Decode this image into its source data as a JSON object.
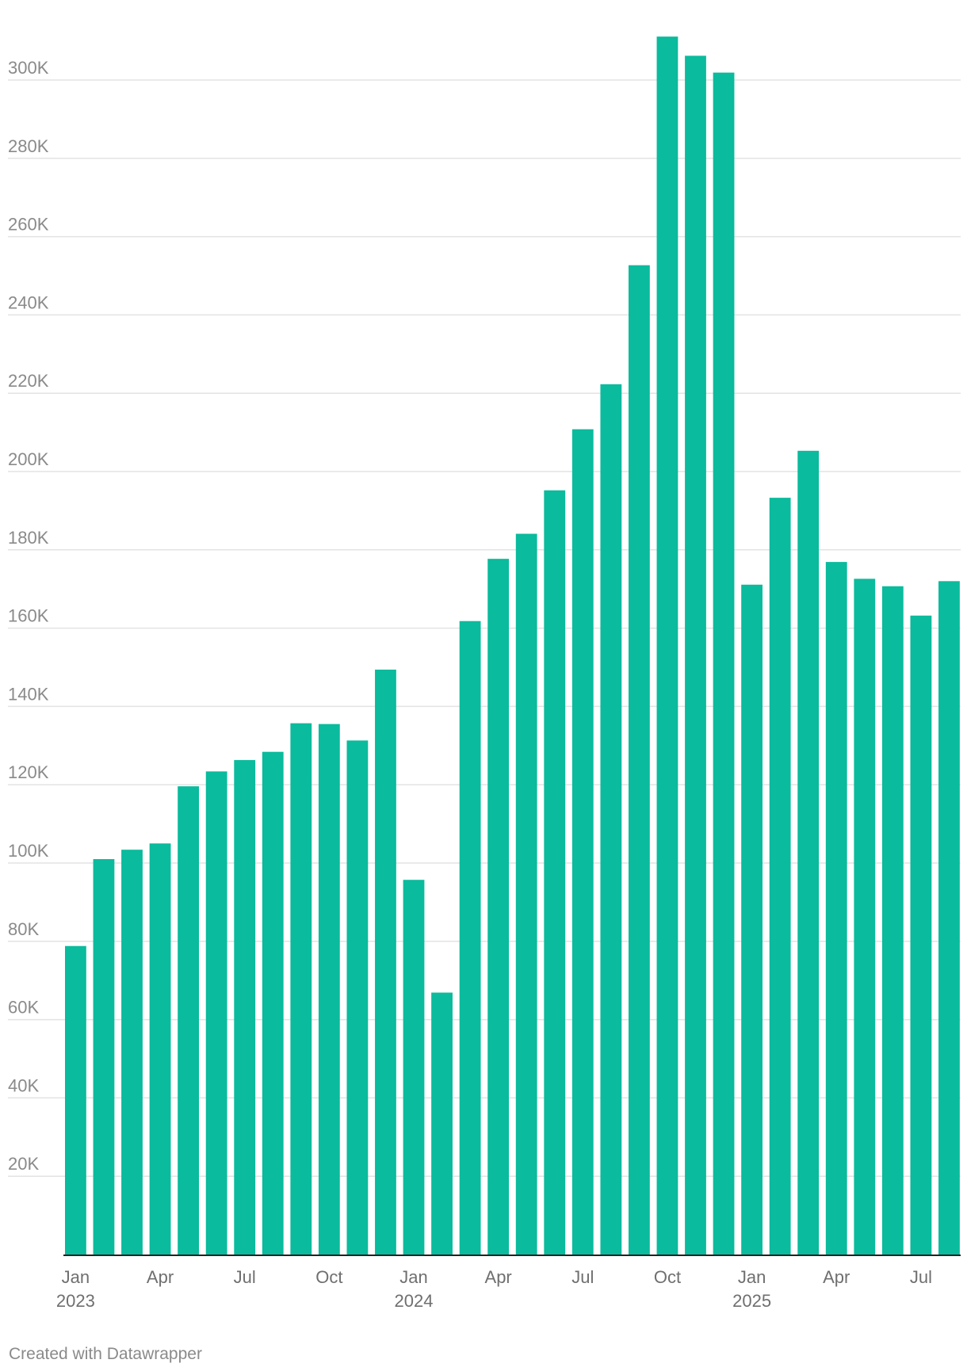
{
  "chart_data": {
    "type": "bar",
    "title": "",
    "xlabel": "",
    "ylabel": "",
    "ylim": [
      0,
      315000
    ],
    "grid": true,
    "bar_color": "#0abb9d",
    "yticks": [
      {
        "value": 20000,
        "label": "20K"
      },
      {
        "value": 40000,
        "label": "40K"
      },
      {
        "value": 60000,
        "label": "60K"
      },
      {
        "value": 80000,
        "label": "80K"
      },
      {
        "value": 100000,
        "label": "100K"
      },
      {
        "value": 120000,
        "label": "120K"
      },
      {
        "value": 140000,
        "label": "140K"
      },
      {
        "value": 160000,
        "label": "160K"
      },
      {
        "value": 180000,
        "label": "180K"
      },
      {
        "value": 200000,
        "label": "200K"
      },
      {
        "value": 220000,
        "label": "220K"
      },
      {
        "value": 240000,
        "label": "240K"
      },
      {
        "value": 260000,
        "label": "260K"
      },
      {
        "value": 280000,
        "label": "280K"
      },
      {
        "value": 300000,
        "label": "300K"
      }
    ],
    "categories": [
      "2023-01",
      "2023-02",
      "2023-03",
      "2023-04",
      "2023-05",
      "2023-06",
      "2023-07",
      "2023-08",
      "2023-09",
      "2023-10",
      "2023-11",
      "2023-12",
      "2024-01",
      "2024-02",
      "2024-03",
      "2024-04",
      "2024-05",
      "2024-06",
      "2024-07",
      "2024-08",
      "2024-09",
      "2024-10",
      "2024-11",
      "2024-12",
      "2025-01",
      "2025-02",
      "2025-03",
      "2025-04",
      "2025-05",
      "2025-06",
      "2025-07",
      "2025-08"
    ],
    "values": [
      78800,
      101000,
      103400,
      105000,
      119600,
      123400,
      126300,
      128400,
      135700,
      135500,
      131300,
      149400,
      95700,
      66900,
      161800,
      177700,
      184100,
      195200,
      210800,
      222300,
      252700,
      311100,
      306200,
      301900,
      171100,
      193300,
      205300,
      176900,
      172600,
      170700,
      163200,
      172000
    ],
    "xticks": [
      {
        "index": 0,
        "month": "Jan",
        "year": "2023"
      },
      {
        "index": 3,
        "month": "Apr",
        "year": ""
      },
      {
        "index": 6,
        "month": "Jul",
        "year": ""
      },
      {
        "index": 9,
        "month": "Oct",
        "year": ""
      },
      {
        "index": 12,
        "month": "Jan",
        "year": "2024"
      },
      {
        "index": 15,
        "month": "Apr",
        "year": ""
      },
      {
        "index": 18,
        "month": "Jul",
        "year": ""
      },
      {
        "index": 21,
        "month": "Oct",
        "year": ""
      },
      {
        "index": 24,
        "month": "Jan",
        "year": "2025"
      },
      {
        "index": 27,
        "month": "Apr",
        "year": ""
      },
      {
        "index": 30,
        "month": "Jul",
        "year": ""
      }
    ]
  },
  "footer": {
    "credit": "Created with Datawrapper"
  }
}
